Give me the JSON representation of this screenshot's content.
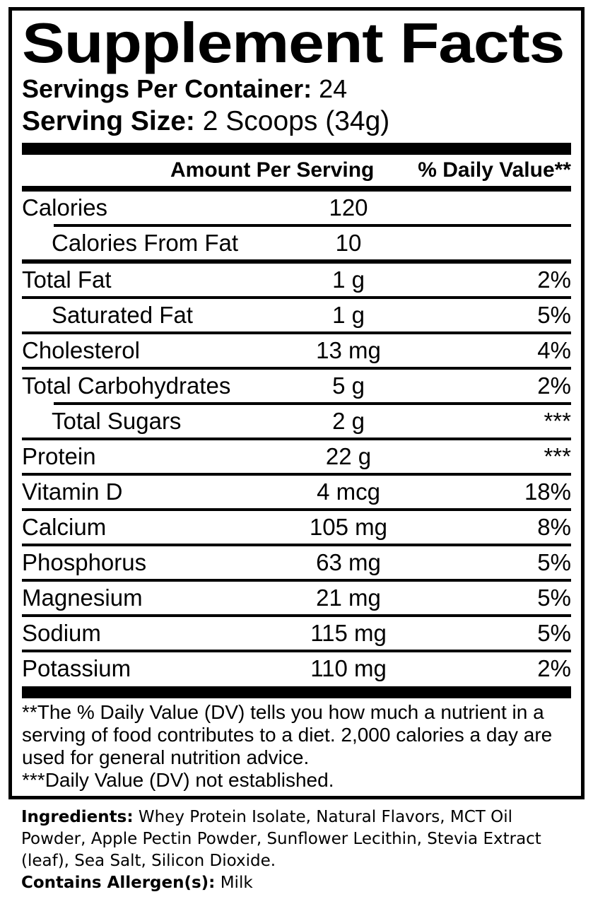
{
  "title": "Supplement Facts",
  "servings_per_container": {
    "label": "Servings Per Container:",
    "value": "24"
  },
  "serving_size": {
    "label": "Serving Size:",
    "value": "2 Scoops (34g)"
  },
  "table": {
    "headers": {
      "amount": "Amount Per Serving",
      "daily_value": "% Daily Value**"
    },
    "rows": [
      {
        "name": "Calories",
        "amount": "120",
        "dv": ""
      },
      {
        "name": "Calories From Fat",
        "amount": "10",
        "dv": ""
      },
      {
        "name": "Total Fat",
        "amount": "1 g",
        "dv": "2%"
      },
      {
        "name": "Saturated Fat",
        "amount": "1 g",
        "dv": "5%"
      },
      {
        "name": "Cholesterol",
        "amount": "13 mg",
        "dv": "4%"
      },
      {
        "name": "Total Carbohydrates",
        "amount": "5 g",
        "dv": "2%"
      },
      {
        "name": "Total Sugars",
        "amount": "2 g",
        "dv": "***"
      },
      {
        "name": "Protein",
        "amount": "22 g",
        "dv": "***"
      },
      {
        "name": "Vitamin D",
        "amount": "4 mcg",
        "dv": "18%"
      },
      {
        "name": "Calcium",
        "amount": "105 mg",
        "dv": "8%"
      },
      {
        "name": "Phosphorus",
        "amount": "63 mg",
        "dv": "5%"
      },
      {
        "name": "Magnesium",
        "amount": "21 mg",
        "dv": "5%"
      },
      {
        "name": "Sodium",
        "amount": "115 mg",
        "dv": "5%"
      },
      {
        "name": "Potassium",
        "amount": "110 mg",
        "dv": "2%"
      }
    ]
  },
  "footnotes": {
    "daily_value": "**The % Daily Value (DV) tells you how much a nutrient in a serving of food contributes to a diet. 2,000 calories a day are used for general nutrition advice.",
    "not_established": "***Daily Value (DV) not established."
  },
  "ingredients": {
    "label": "Ingredients:",
    "value": "Whey Protein Isolate, Natural Flavors, MCT Oil Powder, Apple Pectin Powder, Sunflower Lecithin, Stevia Extract (leaf), Sea Salt, Silicon Dioxide."
  },
  "allergens": {
    "label": "Contains Allergen(s):",
    "value": "Milk"
  },
  "colors": {
    "text": "#000000",
    "background": "#ffffff",
    "border": "#000000"
  }
}
